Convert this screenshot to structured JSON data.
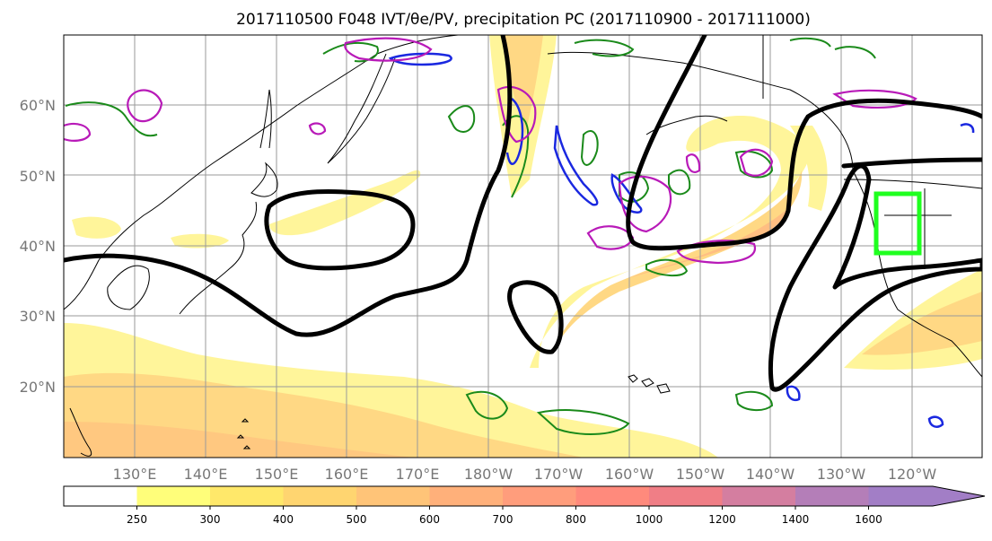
{
  "title": "2017110500 F048 IVT/θe/PV, precipitation PC (2017110900 - 2017111000)",
  "lat_labels": [
    "60°N",
    "50°N",
    "40°N",
    "30°N",
    "20°N"
  ],
  "lon_labels": [
    "130°E",
    "140°E",
    "150°E",
    "160°E",
    "170°E",
    "180°W",
    "170°W",
    "160°W",
    "150°W",
    "140°W",
    "130°W",
    "120°W"
  ],
  "colorbar": {
    "levels": [
      "250",
      "300",
      "400",
      "500",
      "600",
      "700",
      "800",
      "1000",
      "1200",
      "1400",
      "1600"
    ],
    "colors": [
      "#ffffff",
      "#fffe7a",
      "#ffe86a",
      "#ffd570",
      "#ffc478",
      "#ffb07a",
      "#ff9d7c",
      "#ff8a7c",
      "#f07e86",
      "#d47ea0",
      "#b47eb8",
      "#a27ec6"
    ]
  },
  "colors": {
    "ivt_low": "#fff59a",
    "ivt_mid": "#ffd480",
    "ivt_high": "#ffb080",
    "pv": "#000000",
    "theta_e": "#1a8a1a",
    "negative": "#1a28e0",
    "positive": "#b81ab8",
    "box": "#1fff1f"
  }
}
